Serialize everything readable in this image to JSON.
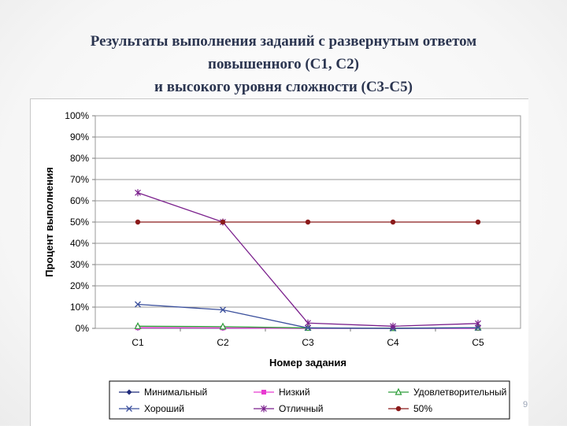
{
  "slide": {
    "title_lines": [
      "Результаты выполнения заданий с развернутым ответом",
      "повышенного (С1, С2)",
      "и высокого уровня сложности (С3-С5)"
    ],
    "page_number": "9"
  },
  "chart_data": {
    "type": "line",
    "categories": [
      "C1",
      "C2",
      "C3",
      "C4",
      "C5"
    ],
    "xlabel": "Номер задания",
    "ylabel": "Процент выполнения",
    "y_ticks": [
      "0%",
      "10%",
      "20%",
      "30%",
      "40%",
      "50%",
      "60%",
      "70%",
      "80%",
      "90%",
      "100%"
    ],
    "ylim": [
      0,
      100
    ],
    "grid": true,
    "legend_position": "bottom",
    "series": [
      {
        "name": "Минимальный",
        "values": [
          0.2,
          0.1,
          0,
          0,
          0
        ],
        "color": "#1f2a7a",
        "marker": "diamond"
      },
      {
        "name": "Низкий",
        "values": [
          0.3,
          0.2,
          0,
          0,
          0
        ],
        "color": "#e83ad0",
        "marker": "square"
      },
      {
        "name": "Удовлетворительный",
        "values": [
          1,
          0.8,
          0.2,
          0.1,
          0.3
        ],
        "color": "#2e9e3a",
        "marker": "triangle"
      },
      {
        "name": "Хороший",
        "values": [
          11.3,
          8.7,
          0.2,
          0,
          0.3
        ],
        "color": "#3a4f9c",
        "marker": "x"
      },
      {
        "name": "Отличный",
        "values": [
          63.8,
          50,
          2.5,
          1,
          2.3
        ],
        "color": "#7a1f8c",
        "marker": "star"
      },
      {
        "name": "50%",
        "values": [
          50,
          50,
          50,
          50,
          50
        ],
        "color": "#8b1a1a",
        "marker": "circle"
      }
    ]
  }
}
